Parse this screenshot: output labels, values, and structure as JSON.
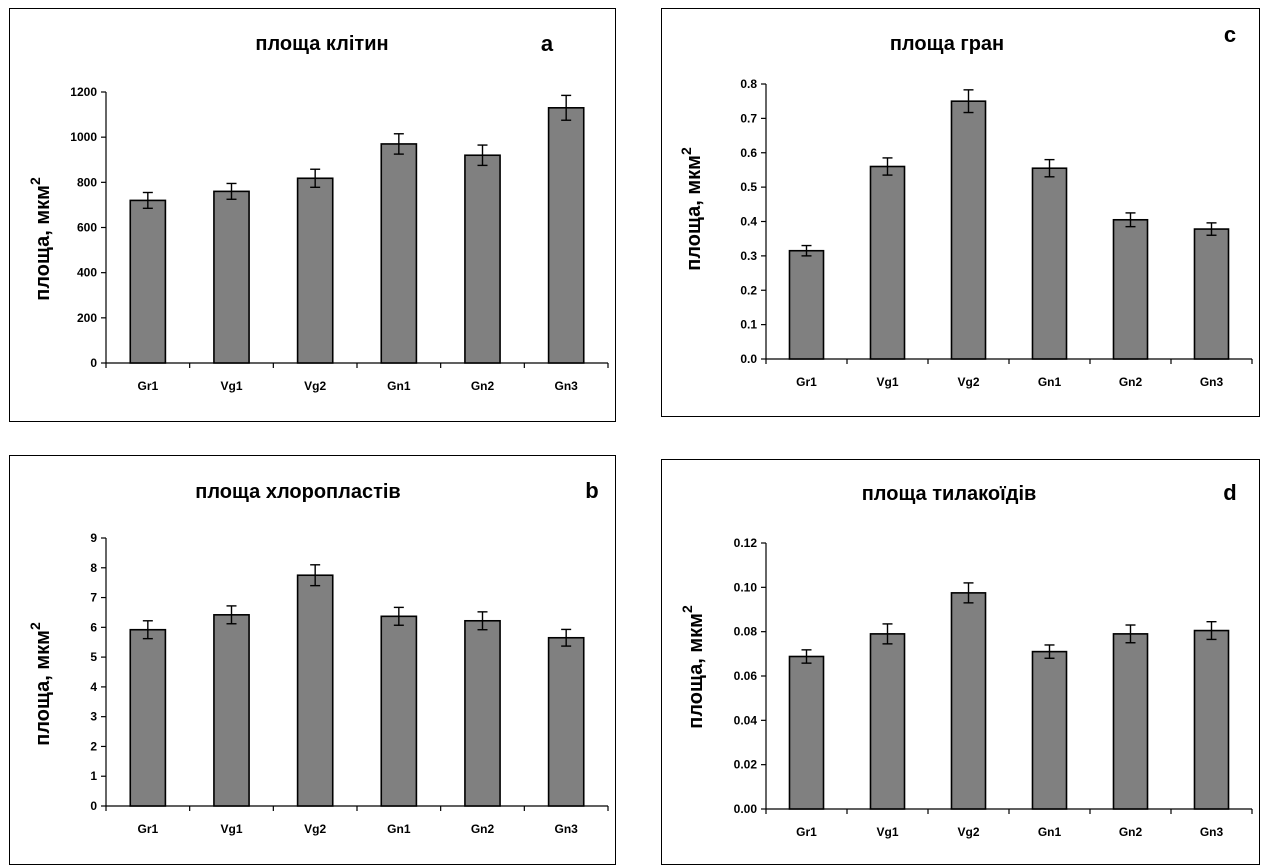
{
  "chart_data": [
    {
      "id": "a",
      "type": "bar",
      "title": "площа клітин",
      "letter": "a",
      "ylabel": "площа, мкм",
      "ylabel_sup": "2",
      "categories": [
        "Gr1",
        "Vg1",
        "Vg2",
        "Gn1",
        "Gn2",
        "Gn3"
      ],
      "values": [
        720,
        760,
        818,
        970,
        920,
        1130
      ],
      "errors": [
        35,
        35,
        40,
        45,
        45,
        55
      ],
      "ylim": [
        0,
        1200
      ],
      "yticks": [
        "0",
        "200",
        "400",
        "600",
        "800",
        "1000",
        "1200"
      ],
      "grid": false
    },
    {
      "id": "c",
      "type": "bar",
      "title": "площа гран",
      "letter": "c",
      "ylabel": "площа, мкм",
      "ylabel_sup": "2",
      "categories": [
        "Gr1",
        "Vg1",
        "Vg2",
        "Gn1",
        "Gn2",
        "Gn3"
      ],
      "values": [
        0.315,
        0.56,
        0.75,
        0.555,
        0.405,
        0.378
      ],
      "errors": [
        0.015,
        0.025,
        0.033,
        0.025,
        0.02,
        0.018
      ],
      "ylim": [
        0,
        0.8
      ],
      "yticks": [
        "0.0",
        "0.1",
        "0.2",
        "0.3",
        "0.4",
        "0.5",
        "0.6",
        "0.7",
        "0.8"
      ],
      "grid": false
    },
    {
      "id": "b",
      "type": "bar",
      "title": "площа хлоропластів",
      "letter": "b",
      "ylabel": "площа, мкм",
      "ylabel_sup": "2",
      "categories": [
        "Gr1",
        "Vg1",
        "Vg2",
        "Gn1",
        "Gn2",
        "Gn3"
      ],
      "values": [
        5.92,
        6.42,
        7.75,
        6.37,
        6.22,
        5.65
      ],
      "errors": [
        0.3,
        0.3,
        0.35,
        0.3,
        0.3,
        0.28
      ],
      "ylim": [
        0,
        9
      ],
      "yticks": [
        "0",
        "1",
        "2",
        "3",
        "4",
        "5",
        "6",
        "7",
        "8",
        "9"
      ],
      "grid": false
    },
    {
      "id": "d",
      "type": "bar",
      "title": "площа тилакоїдів",
      "letter": "d",
      "ylabel": "площа, мкм",
      "ylabel_sup": "2",
      "categories": [
        "Gr1",
        "Vg1",
        "Vg2",
        "Gn1",
        "Gn2",
        "Gn3"
      ],
      "values": [
        0.0688,
        0.079,
        0.0975,
        0.071,
        0.079,
        0.0805
      ],
      "errors": [
        0.003,
        0.0045,
        0.0045,
        0.003,
        0.004,
        0.004
      ],
      "ylim": [
        0,
        0.12
      ],
      "yticks": [
        "0.00",
        "0.02",
        "0.04",
        "0.06",
        "0.08",
        "0.10",
        "0.12"
      ],
      "grid": false
    }
  ]
}
